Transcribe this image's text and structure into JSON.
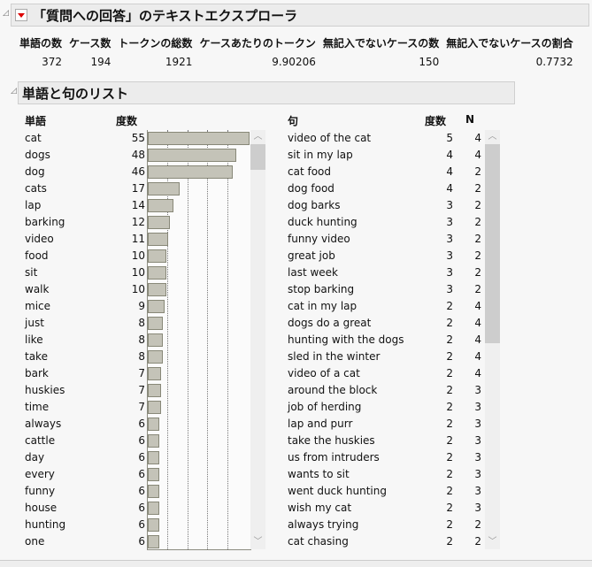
{
  "title": "「質問への回答」のテキストエクスプローラ",
  "stats": {
    "headers": [
      "単語の数",
      "ケース数",
      "トークンの総数",
      "ケースあたりのトークン",
      "無記入でないケースの数",
      "無記入でないケースの割合"
    ],
    "values": [
      "372",
      "194",
      "1921",
      "9.90206",
      "150",
      "0.7732"
    ]
  },
  "section_title": "単語と句のリスト",
  "terms": {
    "headers": {
      "term": "単語",
      "count": "度数"
    },
    "max": 55,
    "rows": [
      [
        "cat",
        55
      ],
      [
        "dogs",
        48
      ],
      [
        "dog",
        46
      ],
      [
        "cats",
        17
      ],
      [
        "lap",
        14
      ],
      [
        "barking",
        12
      ],
      [
        "video",
        11
      ],
      [
        "food",
        10
      ],
      [
        "sit",
        10
      ],
      [
        "walk",
        10
      ],
      [
        "mice",
        9
      ],
      [
        "just",
        8
      ],
      [
        "like",
        8
      ],
      [
        "take",
        8
      ],
      [
        "bark",
        7
      ],
      [
        "huskies",
        7
      ],
      [
        "time",
        7
      ],
      [
        "always",
        6
      ],
      [
        "cattle",
        6
      ],
      [
        "day",
        6
      ],
      [
        "every",
        6
      ],
      [
        "funny",
        6
      ],
      [
        "house",
        6
      ],
      [
        "hunting",
        6
      ],
      [
        "one",
        6
      ]
    ]
  },
  "phrases": {
    "headers": {
      "phrase": "句",
      "count": "度数",
      "n": "N"
    },
    "rows": [
      [
        "video of the cat",
        5,
        4
      ],
      [
        "sit in my lap",
        4,
        4
      ],
      [
        "cat food",
        4,
        2
      ],
      [
        "dog food",
        4,
        2
      ],
      [
        "dog barks",
        3,
        2
      ],
      [
        "duck hunting",
        3,
        2
      ],
      [
        "funny video",
        3,
        2
      ],
      [
        "great job",
        3,
        2
      ],
      [
        "last week",
        3,
        2
      ],
      [
        "stop barking",
        3,
        2
      ],
      [
        "cat in my lap",
        2,
        4
      ],
      [
        "dogs do a great",
        2,
        4
      ],
      [
        "hunting with the dogs",
        2,
        4
      ],
      [
        "sled in the winter",
        2,
        4
      ],
      [
        "video of a cat",
        2,
        4
      ],
      [
        "around the block",
        2,
        3
      ],
      [
        "job of herding",
        2,
        3
      ],
      [
        "lap and purr",
        2,
        3
      ],
      [
        "take the huskies",
        2,
        3
      ],
      [
        "us from intruders",
        2,
        3
      ],
      [
        "wants to sit",
        2,
        3
      ],
      [
        "went duck hunting",
        2,
        3
      ],
      [
        "wish my cat",
        2,
        3
      ],
      [
        "always trying",
        2,
        2
      ],
      [
        "cat chasing",
        2,
        2
      ]
    ]
  },
  "colors": {
    "bar": "#c4c3b8",
    "menu_triangle": "#dd0000"
  },
  "icons": {
    "scroll_up": "chevron-up-icon",
    "scroll_down": "chevron-down-icon"
  }
}
